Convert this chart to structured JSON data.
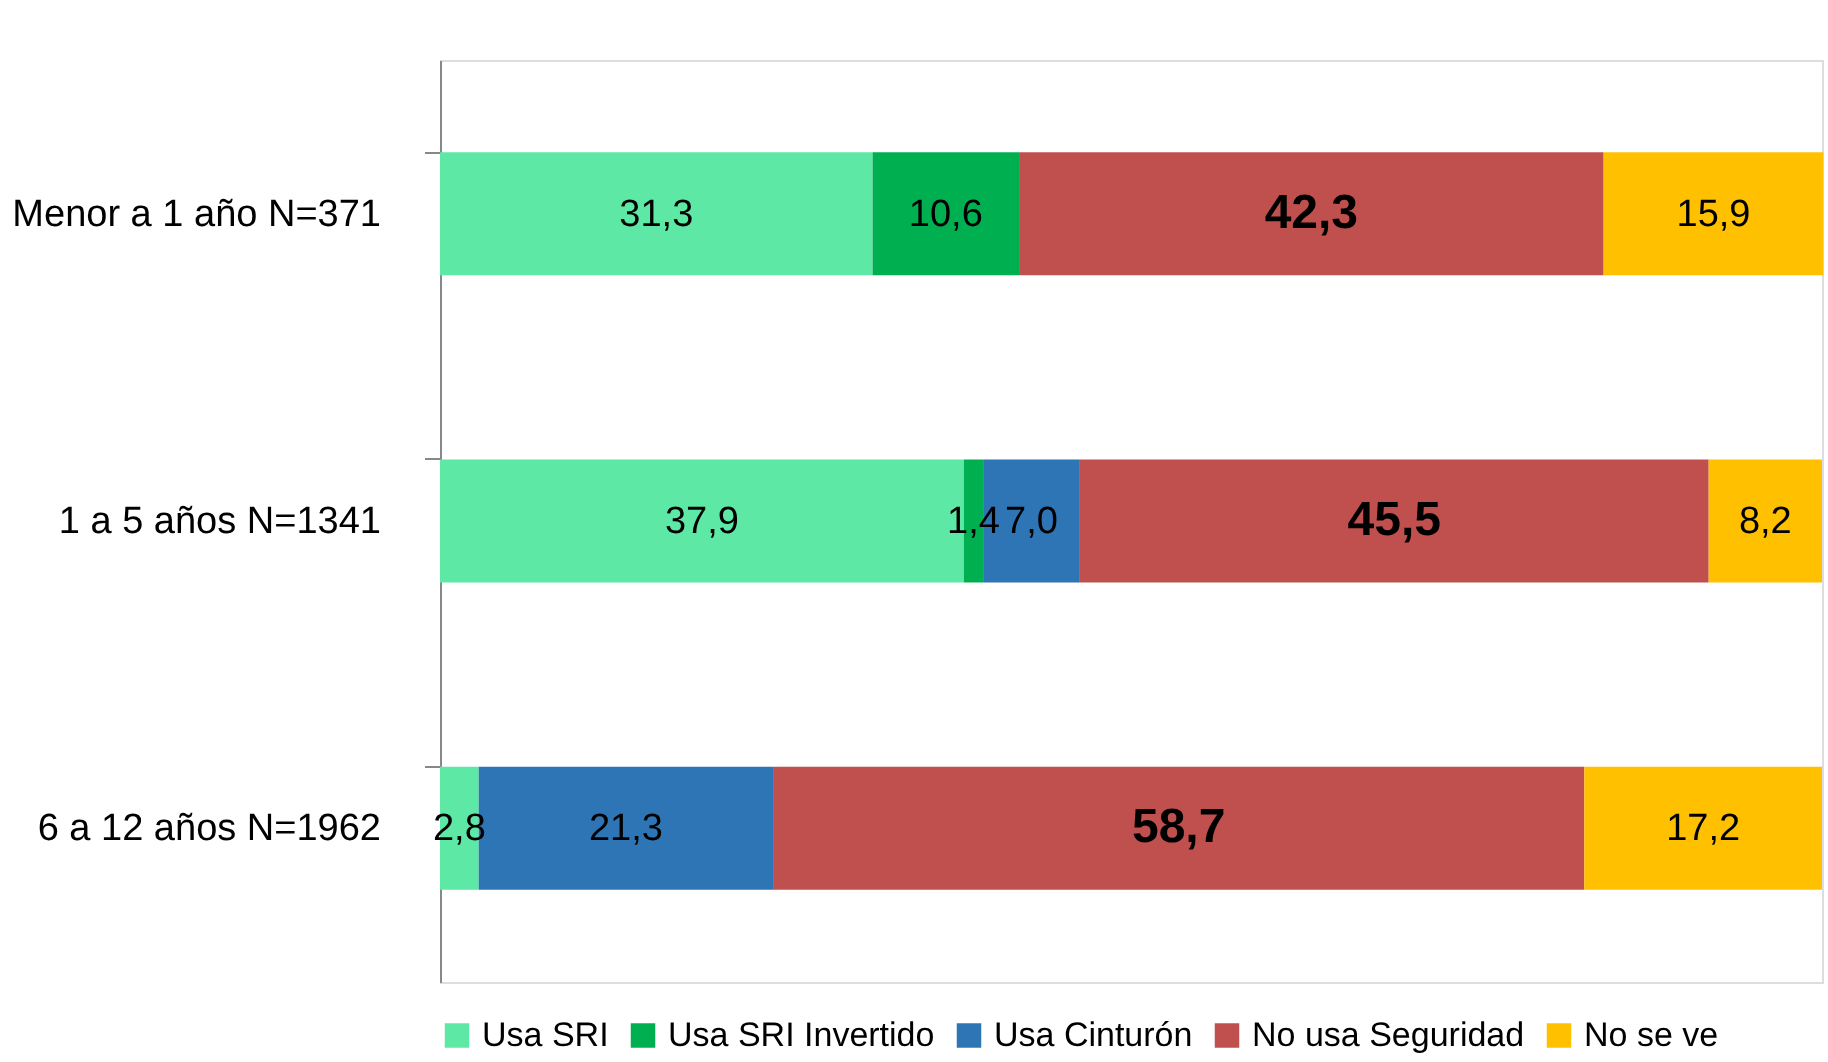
{
  "chart_data": {
    "type": "bar",
    "orientation": "horizontal",
    "stacked": true,
    "categories": [
      "Menor a 1 año N=371",
      "1 a 5 años N=1341",
      "6 a 12 años N=1962"
    ],
    "series": [
      {
        "name": "Usa SRI",
        "color": "#5ee8a5",
        "values": [
          31.3,
          37.9,
          2.8
        ],
        "value_labels": [
          "31,3",
          "37,9",
          "2,8"
        ]
      },
      {
        "name": "Usa SRI Invertido",
        "color": "#00b050",
        "values": [
          10.6,
          1.4,
          null
        ],
        "value_labels": [
          "10,6",
          "1,4",
          null
        ]
      },
      {
        "name": "Usa Cinturón",
        "color": "#2e75b6",
        "values": [
          null,
          7.0,
          21.3
        ],
        "value_labels": [
          null,
          "7,0",
          "21,3"
        ]
      },
      {
        "name": "No usa Seguridad",
        "color": "#c0504d",
        "values": [
          42.3,
          45.5,
          58.7
        ],
        "value_labels": [
          "42,3",
          "45,5",
          "58,7"
        ]
      },
      {
        "name": "No se ve",
        "color": "#ffc000",
        "values": [
          15.9,
          8.2,
          17.2
        ],
        "value_labels": [
          "15,9",
          "8,2",
          "17,2"
        ]
      }
    ],
    "xlim": [
      0,
      100
    ],
    "tick_labels": "y",
    "legend": "bottom"
  }
}
